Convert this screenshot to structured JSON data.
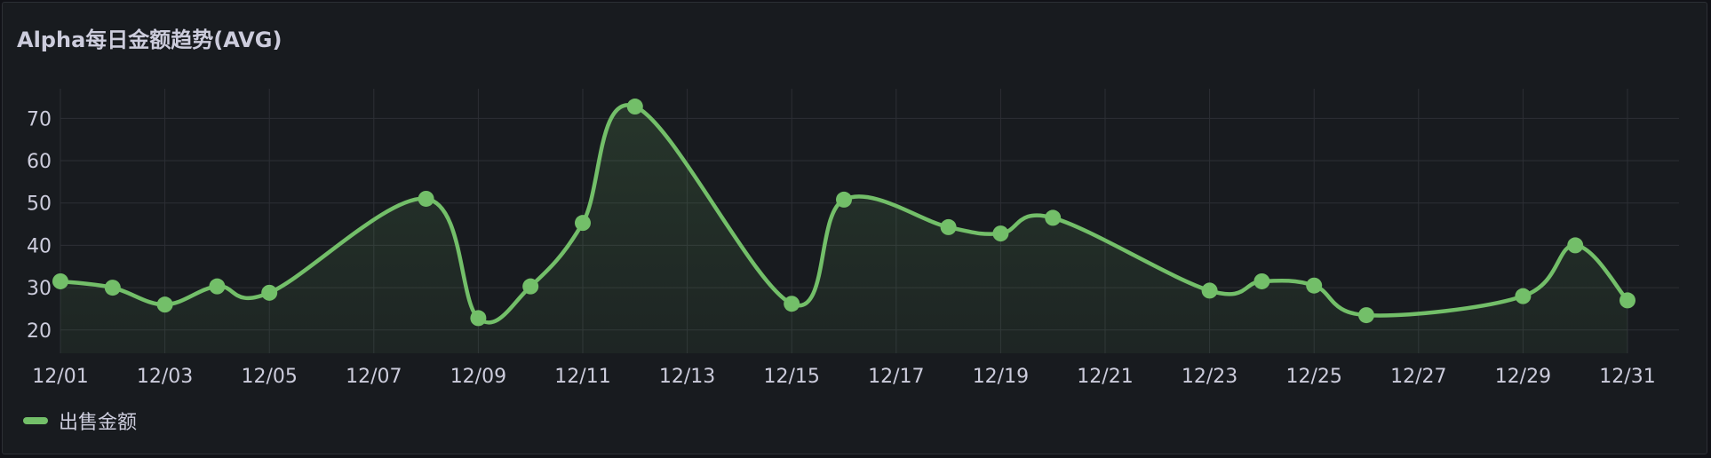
{
  "panel": {
    "title": "Alpha每日金额趋势(AVG)"
  },
  "colors": {
    "background": "#181b1f",
    "series": "#73bf69",
    "grid": "#2c2f35",
    "text": "#ccccdc"
  },
  "chart_data": {
    "type": "line",
    "title": "Alpha每日金额趋势(AVG)",
    "xlabel": "",
    "ylabel": "",
    "x": [
      "12/01",
      "12/02",
      "12/03",
      "12/04",
      "12/05",
      "12/06",
      "12/07",
      "12/08",
      "12/09",
      "12/10",
      "12/11",
      "12/12",
      "12/13",
      "12/14",
      "12/15",
      "12/16",
      "12/17",
      "12/18",
      "12/19",
      "12/20",
      "12/21",
      "12/22",
      "12/23",
      "12/24",
      "12/25",
      "12/26",
      "12/27",
      "12/28",
      "12/29",
      "12/30",
      "12/31"
    ],
    "x_tick_labels": [
      "12/01",
      "12/03",
      "12/05",
      "12/07",
      "12/09",
      "12/11",
      "12/13",
      "12/15",
      "12/17",
      "12/19",
      "12/21",
      "12/23",
      "12/25",
      "12/27",
      "12/29",
      "12/31"
    ],
    "y_tick_labels": [
      "70",
      "60",
      "50",
      "40",
      "30",
      "20"
    ],
    "ylim": [
      14.5,
      77
    ],
    "grid": true,
    "legend_position": "bottom-left",
    "series": [
      {
        "name": "出售金额",
        "points": [
          {
            "x": "12/01",
            "y": 31.5
          },
          {
            "x": "12/02",
            "y": 30.0
          },
          {
            "x": "12/03",
            "y": 26.0
          },
          {
            "x": "12/04",
            "y": 30.3
          },
          {
            "x": "12/05",
            "y": 28.8
          },
          {
            "x": "12/08",
            "y": 51.0
          },
          {
            "x": "12/09",
            "y": 22.8
          },
          {
            "x": "12/10",
            "y": 30.3
          },
          {
            "x": "12/11",
            "y": 45.3
          },
          {
            "x": "12/12",
            "y": 72.8
          },
          {
            "x": "12/15",
            "y": 26.2
          },
          {
            "x": "12/16",
            "y": 50.8
          },
          {
            "x": "12/18",
            "y": 44.3
          },
          {
            "x": "12/19",
            "y": 42.8
          },
          {
            "x": "12/20",
            "y": 46.5
          },
          {
            "x": "12/23",
            "y": 29.3
          },
          {
            "x": "12/24",
            "y": 31.5
          },
          {
            "x": "12/25",
            "y": 30.5
          },
          {
            "x": "12/26",
            "y": 23.5
          },
          {
            "x": "12/29",
            "y": 28.0
          },
          {
            "x": "12/30",
            "y": 40.0
          },
          {
            "x": "12/31",
            "y": 27.0
          }
        ]
      }
    ]
  }
}
